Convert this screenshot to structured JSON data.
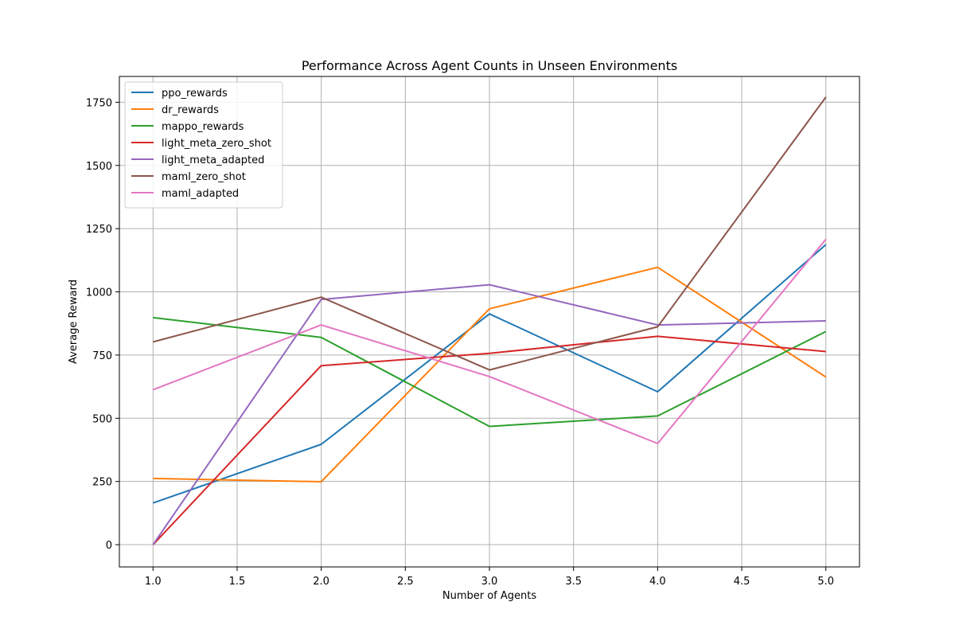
{
  "chart_data": {
    "type": "line",
    "title": "Performance Across Agent Counts in Unseen Environments",
    "xlabel": "Number of Agents",
    "ylabel": "Average Reward",
    "x": [
      1.0,
      2.0,
      3.0,
      4.0,
      5.0
    ],
    "xlim": [
      0.8,
      5.2
    ],
    "ylim": [
      -88,
      1852
    ],
    "xticks": [
      1.0,
      1.5,
      2.0,
      2.5,
      3.0,
      3.5,
      4.0,
      4.5,
      5.0
    ],
    "xtick_labels": [
      "1.0",
      "1.5",
      "2.0",
      "2.5",
      "3.0",
      "3.5",
      "4.0",
      "4.5",
      "5.0"
    ],
    "yticks": [
      0,
      250,
      500,
      750,
      1000,
      1250,
      1500,
      1750
    ],
    "ytick_labels": [
      "0",
      "250",
      "500",
      "750",
      "1000",
      "1250",
      "1500",
      "1750"
    ],
    "grid": true,
    "legend_position": "top-left",
    "series": [
      {
        "name": "ppo_rewards",
        "color": "#1f77b4",
        "values": [
          165,
          397,
          913,
          605,
          1187
        ]
      },
      {
        "name": "dr_rewards",
        "color": "#ff7f0e",
        "values": [
          262,
          249,
          933,
          1097,
          663
        ]
      },
      {
        "name": "mappo_rewards",
        "color": "#2ca02c",
        "values": [
          898,
          820,
          468,
          509,
          843
        ]
      },
      {
        "name": "light_meta_zero_shot",
        "color": "#d62728",
        "values": [
          0,
          708,
          757,
          824,
          764
        ]
      },
      {
        "name": "light_meta_adapted",
        "color": "#9467bd",
        "values": [
          0,
          970,
          1028,
          869,
          885
        ]
      },
      {
        "name": "maml_zero_shot",
        "color": "#8c564b",
        "values": [
          802,
          979,
          691,
          862,
          1770
        ]
      },
      {
        "name": "maml_adapted",
        "color": "#e377c2",
        "values": [
          613,
          869,
          665,
          400,
          1208
        ]
      }
    ]
  }
}
